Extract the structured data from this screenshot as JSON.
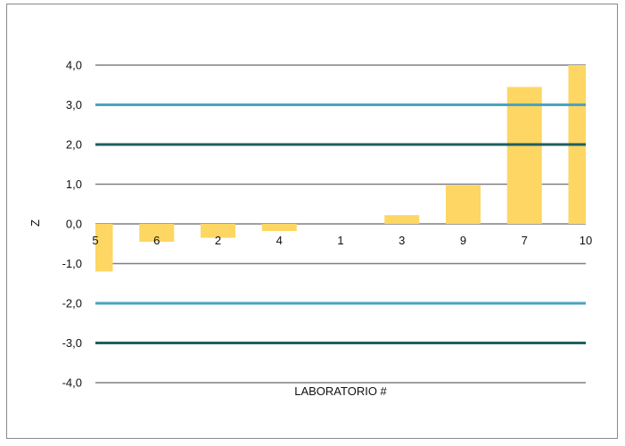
{
  "chart_data": {
    "type": "bar",
    "title": "",
    "xlabel": "LABORATORIO #",
    "ylabel": "Z",
    "categories": [
      "5",
      "6",
      "2",
      "4",
      "1",
      "3",
      "9",
      "7",
      "10"
    ],
    "values": [
      -1.2,
      -0.45,
      -0.35,
      -0.18,
      0.0,
      0.22,
      0.97,
      3.45,
      4.0
    ],
    "ylim": [
      -4.0,
      4.0
    ],
    "yticks": [
      "4,0",
      "3,0",
      "2,0",
      "1,0",
      "0,0",
      "-1,0",
      "-2,0",
      "-3,0",
      "-4,0"
    ],
    "ytick_values": [
      4,
      3,
      2,
      1,
      0,
      -1,
      -2,
      -3,
      -4
    ],
    "reference_lines": [
      {
        "value": 3,
        "color": "#4aa3c0"
      },
      {
        "value": -2,
        "color": "#4aa3c0"
      },
      {
        "value": 2,
        "color": "#1f5f5f"
      },
      {
        "value": -3,
        "color": "#1f5f5f"
      }
    ],
    "grid": true,
    "legend": "none",
    "colors": {
      "bar": "#fdd663",
      "gridline": "#808080",
      "tolerance_line": "#4aa3c0",
      "action_line": "#1f5f5f",
      "frame": "#8a8a8a"
    }
  }
}
